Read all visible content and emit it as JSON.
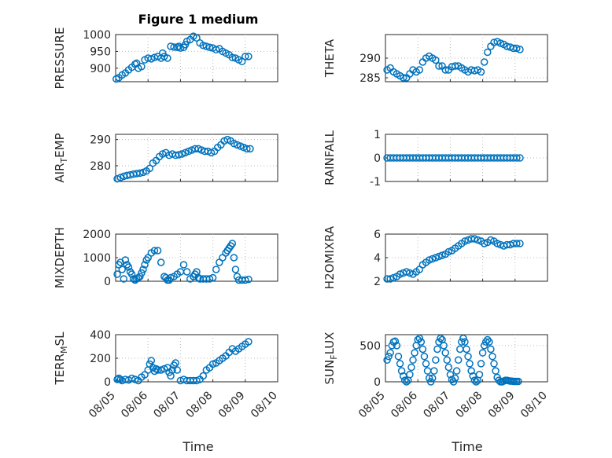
{
  "figure": {
    "title": "Figure 1 medium",
    "xlabel": "Time"
  },
  "colors": {
    "marker": "#0072BD",
    "axes": "#262626",
    "grid": "#b8b8b8"
  },
  "chart_data": [
    {
      "type": "scatter",
      "marker": "circle",
      "ylabel": "PRESSURE",
      "xlim": [
        "08/05",
        "08/10"
      ],
      "ylim": [
        860,
        1000
      ],
      "yticks": [
        900,
        950,
        1000
      ],
      "ytick_labels": [
        "900",
        "950",
        "1000"
      ],
      "xticks": [
        "08/05",
        "08/06",
        "08/07",
        "08/08",
        "08/09",
        "08/10"
      ],
      "show_xtick_labels": false,
      "grid": true,
      "x": [
        0.02,
        0.1,
        0.2,
        0.3,
        0.4,
        0.5,
        0.6,
        0.65,
        0.7,
        0.8,
        0.9,
        1.0,
        1.1,
        1.2,
        1.3,
        1.4,
        1.45,
        1.5,
        1.6,
        1.7,
        1.8,
        1.9,
        1.95,
        2.0,
        2.1,
        2.15,
        2.2,
        2.3,
        2.4,
        2.5,
        2.6,
        2.7,
        2.8,
        2.9,
        3.0,
        3.1,
        3.2,
        3.3,
        3.4,
        3.5,
        3.6,
        3.7,
        3.8,
        3.9,
        4.0,
        4.1
      ],
      "y": [
        868,
        872,
        880,
        886,
        895,
        903,
        912,
        915,
        900,
        905,
        925,
        930,
        928,
        932,
        935,
        930,
        945,
        935,
        930,
        965,
        963,
        962,
        965,
        960,
        962,
        970,
        980,
        985,
        995,
        990,
        975,
        968,
        965,
        962,
        960,
        955,
        958,
        950,
        945,
        940,
        932,
        930,
        925,
        920,
        935,
        935
      ]
    },
    {
      "type": "scatter",
      "marker": "circle",
      "ylabel": "THETA",
      "xlim": [
        "08/05",
        "08/10"
      ],
      "ylim": [
        284,
        296
      ],
      "yticks": [
        285,
        290
      ],
      "ytick_labels": [
        "285",
        "290"
      ],
      "xticks": [
        "08/05",
        "08/06",
        "08/07",
        "08/08",
        "08/09",
        "08/10"
      ],
      "show_xtick_labels": false,
      "grid": true,
      "x": [
        0.05,
        0.15,
        0.25,
        0.35,
        0.45,
        0.55,
        0.65,
        0.75,
        0.85,
        0.95,
        1.05,
        1.15,
        1.25,
        1.35,
        1.45,
        1.55,
        1.65,
        1.75,
        1.85,
        1.95,
        2.05,
        2.15,
        2.25,
        2.35,
        2.45,
        2.55,
        2.65,
        2.75,
        2.85,
        2.95,
        3.05,
        3.15,
        3.25,
        3.35,
        3.45,
        3.55,
        3.65,
        3.75,
        3.85,
        3.95,
        4.05,
        4.15
      ],
      "y": [
        287,
        287.5,
        286.5,
        286,
        285.5,
        285,
        285,
        286,
        287,
        286.5,
        287,
        289,
        290,
        290.5,
        290,
        289.5,
        288,
        288,
        287,
        287,
        287.8,
        288,
        288,
        287.5,
        287,
        286.5,
        287,
        286.8,
        287,
        286.5,
        289,
        291.5,
        293,
        294,
        294.2,
        293.8,
        293.5,
        293,
        292.8,
        292.5,
        292.5,
        292.2
      ]
    },
    {
      "type": "scatter",
      "marker": "circle",
      "ylabel": "AIR_TEMP",
      "xlim": [
        "08/05",
        "08/10"
      ],
      "ylim": [
        274,
        292
      ],
      "yticks": [
        280,
        290
      ],
      "ytick_labels": [
        "280",
        "290"
      ],
      "xticks": [
        "08/05",
        "08/06",
        "08/07",
        "08/08",
        "08/09",
        "08/10"
      ],
      "show_xtick_labels": false,
      "grid": true,
      "x": [
        0.05,
        0.15,
        0.25,
        0.35,
        0.45,
        0.55,
        0.65,
        0.75,
        0.85,
        0.95,
        1.05,
        1.15,
        1.25,
        1.35,
        1.45,
        1.55,
        1.65,
        1.75,
        1.85,
        1.95,
        2.05,
        2.15,
        2.25,
        2.35,
        2.45,
        2.55,
        2.65,
        2.75,
        2.85,
        2.95,
        3.05,
        3.15,
        3.25,
        3.35,
        3.45,
        3.55,
        3.65,
        3.75,
        3.85,
        3.95,
        4.05,
        4.15
      ],
      "y": [
        275,
        275.5,
        276,
        276.3,
        276.5,
        276.8,
        277,
        277.2,
        277.5,
        278,
        279,
        281,
        282,
        283.5,
        284.5,
        285,
        284,
        284.5,
        284,
        284.2,
        284.5,
        285,
        285.5,
        286,
        286.5,
        286.5,
        286,
        285.5,
        285.5,
        285,
        285.5,
        287,
        288,
        289.5,
        290,
        289.5,
        288.5,
        288,
        287.5,
        287,
        286.5,
        286.5
      ]
    },
    {
      "type": "scatter",
      "marker": "circle",
      "ylabel": "RAINFALL",
      "xlim": [
        "08/05",
        "08/10"
      ],
      "ylim": [
        -1,
        1
      ],
      "yticks": [
        -1,
        0,
        1
      ],
      "ytick_labels": [
        "-1",
        "0",
        "1"
      ],
      "xticks": [
        "08/05",
        "08/06",
        "08/07",
        "08/08",
        "08/09",
        "08/10"
      ],
      "show_xtick_labels": false,
      "grid": true,
      "x": [
        0.05,
        0.15,
        0.25,
        0.35,
        0.45,
        0.55,
        0.65,
        0.75,
        0.85,
        0.95,
        1.05,
        1.15,
        1.25,
        1.35,
        1.45,
        1.55,
        1.65,
        1.75,
        1.85,
        1.95,
        2.05,
        2.15,
        2.25,
        2.35,
        2.45,
        2.55,
        2.65,
        2.75,
        2.85,
        2.95,
        3.05,
        3.15,
        3.25,
        3.35,
        3.45,
        3.55,
        3.65,
        3.75,
        3.85,
        3.95,
        4.05,
        4.15
      ],
      "y": [
        0,
        0,
        0,
        0,
        0,
        0,
        0,
        0,
        0,
        0,
        0,
        0,
        0,
        0,
        0,
        0,
        0,
        0,
        0,
        0,
        0,
        0,
        0,
        0,
        0,
        0,
        0,
        0,
        0,
        0,
        0,
        0,
        0,
        0,
        0,
        0,
        0,
        0,
        0,
        0,
        0,
        0
      ]
    },
    {
      "type": "scatter",
      "marker": "circle",
      "ylabel": "MIXDEPTH",
      "xlim": [
        "08/05",
        "08/10"
      ],
      "ylim": [
        0,
        2000
      ],
      "yticks": [
        0,
        1000,
        2000
      ],
      "ytick_labels": [
        "0",
        "1000",
        "2000"
      ],
      "xticks": [
        "08/05",
        "08/06",
        "08/07",
        "08/08",
        "08/09",
        "08/10"
      ],
      "show_xtick_labels": false,
      "grid": true,
      "x": [
        0.05,
        0.1,
        0.15,
        0.2,
        0.25,
        0.3,
        0.35,
        0.4,
        0.45,
        0.5,
        0.55,
        0.6,
        0.65,
        0.7,
        0.75,
        0.8,
        0.85,
        0.9,
        0.95,
        1.0,
        1.1,
        1.2,
        1.3,
        1.4,
        1.5,
        1.55,
        1.6,
        1.65,
        1.7,
        1.8,
        1.9,
        2.0,
        2.1,
        2.2,
        2.3,
        2.4,
        2.45,
        2.5,
        2.55,
        2.6,
        2.7,
        2.8,
        2.9,
        3.0,
        3.1,
        3.2,
        3.3,
        3.4,
        3.45,
        3.5,
        3.55,
        3.6,
        3.65,
        3.7,
        3.75,
        3.8,
        3.9,
        4.0,
        4.1
      ],
      "y": [
        300,
        700,
        800,
        500,
        100,
        900,
        700,
        600,
        400,
        300,
        100,
        50,
        100,
        150,
        200,
        350,
        500,
        700,
        900,
        1000,
        1200,
        1300,
        1300,
        800,
        200,
        150,
        50,
        50,
        150,
        200,
        300,
        400,
        700,
        400,
        100,
        200,
        300,
        400,
        150,
        100,
        100,
        100,
        100,
        150,
        500,
        800,
        1000,
        1200,
        1300,
        1400,
        1500,
        1600,
        1000,
        500,
        200,
        50,
        50,
        50,
        80
      ]
    },
    {
      "type": "scatter",
      "marker": "circle",
      "ylabel": "H2OMIXRA",
      "xlim": [
        "08/05",
        "08/10"
      ],
      "ylim": [
        2,
        6
      ],
      "yticks": [
        2,
        4,
        6
      ],
      "ytick_labels": [
        "2",
        "4",
        "6"
      ],
      "xticks": [
        "08/05",
        "08/06",
        "08/07",
        "08/08",
        "08/09",
        "08/10"
      ],
      "show_xtick_labels": false,
      "grid": true,
      "x": [
        0.05,
        0.15,
        0.25,
        0.35,
        0.45,
        0.55,
        0.65,
        0.75,
        0.85,
        0.95,
        1.05,
        1.15,
        1.25,
        1.35,
        1.45,
        1.55,
        1.65,
        1.75,
        1.85,
        1.95,
        2.05,
        2.15,
        2.25,
        2.35,
        2.45,
        2.55,
        2.65,
        2.75,
        2.85,
        2.95,
        3.05,
        3.15,
        3.25,
        3.35,
        3.45,
        3.55,
        3.65,
        3.75,
        3.85,
        3.95,
        4.05,
        4.15
      ],
      "y": [
        2.2,
        2.2,
        2.3,
        2.4,
        2.6,
        2.7,
        2.8,
        2.7,
        2.6,
        2.8,
        3.0,
        3.4,
        3.6,
        3.8,
        3.9,
        4.0,
        4.1,
        4.2,
        4.3,
        4.5,
        4.6,
        4.8,
        5.0,
        5.2,
        5.4,
        5.5,
        5.6,
        5.6,
        5.5,
        5.4,
        5.2,
        5.3,
        5.5,
        5.4,
        5.2,
        5.1,
        5.0,
        5.1,
        5.1,
        5.2,
        5.2,
        5.2
      ]
    },
    {
      "type": "scatter",
      "marker": "circle",
      "ylabel": "TERR_MSL",
      "xlim": [
        "08/05",
        "08/10"
      ],
      "ylim": [
        0,
        400
      ],
      "yticks": [
        0,
        200,
        400
      ],
      "ytick_labels": [
        "0",
        "200",
        "400"
      ],
      "xticks": [
        "08/05",
        "08/06",
        "08/07",
        "08/08",
        "08/09",
        "08/10"
      ],
      "xtick_labels": [
        "08/05",
        "08/06",
        "08/07",
        "08/08",
        "08/09",
        "08/10"
      ],
      "grid": true,
      "x": [
        0.05,
        0.1,
        0.15,
        0.2,
        0.3,
        0.4,
        0.5,
        0.6,
        0.7,
        0.8,
        0.9,
        1.0,
        1.05,
        1.1,
        1.15,
        1.2,
        1.25,
        1.3,
        1.4,
        1.5,
        1.6,
        1.65,
        1.7,
        1.75,
        1.8,
        1.85,
        1.9,
        2.0,
        2.1,
        2.2,
        2.3,
        2.4,
        2.5,
        2.6,
        2.7,
        2.8,
        2.9,
        3.0,
        3.1,
        3.2,
        3.3,
        3.4,
        3.5,
        3.6,
        3.7,
        3.8,
        3.9,
        4.0,
        4.1
      ],
      "y": [
        20,
        30,
        20,
        10,
        20,
        15,
        30,
        20,
        10,
        40,
        60,
        100,
        150,
        180,
        120,
        90,
        110,
        100,
        100,
        110,
        120,
        80,
        50,
        100,
        140,
        160,
        100,
        10,
        20,
        10,
        10,
        10,
        10,
        20,
        50,
        100,
        120,
        150,
        160,
        180,
        200,
        220,
        250,
        280,
        260,
        280,
        300,
        320,
        340
      ]
    },
    {
      "type": "scatter",
      "marker": "circle",
      "ylabel": "SUN_FLUX",
      "xlim": [
        "08/05",
        "08/10"
      ],
      "ylim": [
        0,
        650
      ],
      "yticks": [
        0,
        500
      ],
      "ytick_labels": [
        "0",
        "500"
      ],
      "xticks": [
        "08/05",
        "08/06",
        "08/07",
        "08/08",
        "08/09",
        "08/10"
      ],
      "xtick_labels": [
        "08/05",
        "08/06",
        "08/07",
        "08/08",
        "08/09",
        "08/10"
      ],
      "grid": true,
      "x": [
        0.05,
        0.1,
        0.15,
        0.2,
        0.25,
        0.3,
        0.35,
        0.4,
        0.45,
        0.5,
        0.55,
        0.6,
        0.65,
        0.7,
        0.75,
        0.8,
        0.85,
        0.9,
        0.95,
        1.0,
        1.05,
        1.1,
        1.15,
        1.2,
        1.25,
        1.3,
        1.35,
        1.4,
        1.45,
        1.5,
        1.55,
        1.6,
        1.65,
        1.7,
        1.75,
        1.8,
        1.85,
        1.9,
        1.95,
        2.0,
        2.05,
        2.1,
        2.15,
        2.2,
        2.25,
        2.3,
        2.35,
        2.4,
        2.45,
        2.5,
        2.55,
        2.6,
        2.65,
        2.7,
        2.75,
        2.8,
        2.85,
        2.9,
        2.95,
        3.0,
        3.05,
        3.1,
        3.15,
        3.2,
        3.25,
        3.3,
        3.35,
        3.4,
        3.45,
        3.5,
        3.55,
        3.6,
        3.65,
        3.7,
        3.75,
        3.8,
        3.85,
        3.9,
        3.95,
        4.0,
        4.05,
        4.1
      ],
      "y": [
        300,
        350,
        400,
        500,
        550,
        560,
        500,
        350,
        250,
        150,
        80,
        20,
        0,
        20,
        100,
        200,
        300,
        400,
        500,
        580,
        600,
        550,
        450,
        350,
        250,
        150,
        50,
        0,
        50,
        150,
        300,
        450,
        550,
        600,
        580,
        500,
        400,
        300,
        200,
        100,
        30,
        0,
        50,
        150,
        300,
        450,
        550,
        600,
        550,
        450,
        350,
        250,
        150,
        80,
        20,
        0,
        20,
        100,
        250,
        400,
        500,
        550,
        580,
        550,
        450,
        350,
        250,
        150,
        60,
        20,
        0,
        0,
        10,
        20,
        20,
        15,
        10,
        10,
        5,
        5,
        5,
        5
      ]
    }
  ]
}
